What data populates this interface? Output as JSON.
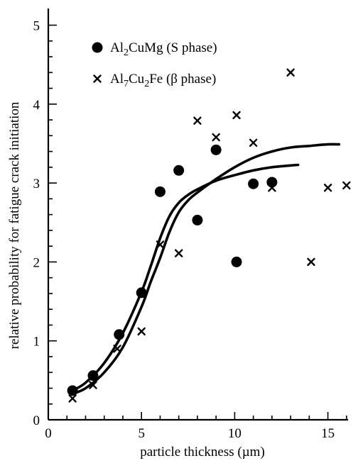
{
  "chart_data": {
    "type": "scatter",
    "title": "",
    "xlabel": "particle thickness (µm)",
    "ylabel": "relative probability for fatigue crack initiation",
    "xlim": [
      0,
      16
    ],
    "ylim": [
      0,
      5
    ],
    "xticks": [
      "0",
      "5",
      "10",
      "15"
    ],
    "yticks": [
      "0",
      "1",
      "2",
      "3",
      "4",
      "5"
    ],
    "grid": false,
    "legend_position": "top-left",
    "series": [
      {
        "name": "Al2CuMg (S phase)",
        "legend": {
          "pre": "Al",
          "sub1": "2",
          "mid": "CuMg (S phase)",
          "sub2": "",
          "post": ""
        },
        "marker": "filled-circle",
        "x": [
          1.3,
          2.4,
          3.8,
          5.0,
          6.0,
          7.0,
          8.0,
          9.0,
          10.1,
          11.0,
          12.0
        ],
        "y": [
          0.37,
          0.56,
          1.08,
          1.61,
          2.89,
          3.16,
          2.53,
          3.42,
          2.0,
          2.99,
          3.01
        ]
      },
      {
        "name": "Al7Cu2Fe (β phase)",
        "legend": {
          "pre": "Al",
          "sub1": "7",
          "mid": "Cu",
          "sub2": "2",
          "post": "Fe (β phase)"
        },
        "marker": "cross",
        "x": [
          1.3,
          2.4,
          3.7,
          5.0,
          6.0,
          7.0,
          8.0,
          9.0,
          10.1,
          11.0,
          12.0,
          13.0,
          14.1,
          15.0,
          16.0
        ],
        "y": [
          0.27,
          0.44,
          0.9,
          1.12,
          2.22,
          2.11,
          3.79,
          3.58,
          3.86,
          3.51,
          2.94,
          4.4,
          2.0,
          2.94,
          2.97
        ]
      }
    ],
    "fit_curves": [
      {
        "x": [
          1.3,
          2.0,
          3.0,
          4.0,
          5.0,
          5.5,
          6.0,
          6.5,
          7.0,
          7.5,
          8.0,
          9.0,
          10.0,
          11.0,
          12.0,
          13.4
        ],
        "y": [
          0.37,
          0.47,
          0.72,
          1.1,
          1.62,
          1.95,
          2.3,
          2.58,
          2.75,
          2.85,
          2.92,
          3.03,
          3.1,
          3.16,
          3.2,
          3.23
        ]
      },
      {
        "x": [
          1.3,
          2.0,
          3.0,
          4.0,
          5.0,
          5.5,
          6.0,
          6.5,
          7.0,
          7.5,
          8.0,
          9.0,
          10.0,
          11.0,
          12.0,
          13.0,
          14.0,
          15.0,
          15.6
        ],
        "y": [
          0.33,
          0.4,
          0.6,
          0.92,
          1.43,
          1.75,
          2.05,
          2.38,
          2.63,
          2.78,
          2.88,
          3.05,
          3.2,
          3.32,
          3.4,
          3.45,
          3.47,
          3.49,
          3.49
        ]
      }
    ]
  }
}
